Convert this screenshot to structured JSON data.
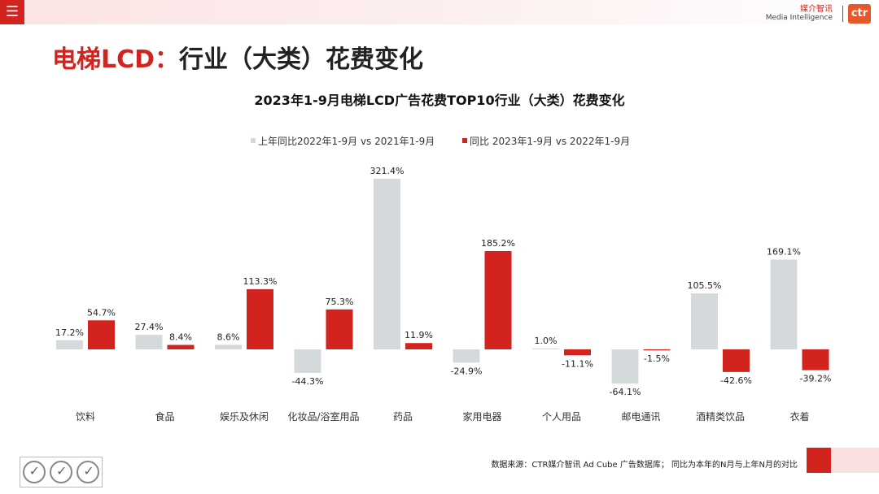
{
  "header": {
    "menu_icon": "☰",
    "brand_cn": "媒介智讯",
    "brand_en": "Media Intelligence",
    "logo_text": "ctr"
  },
  "page_title": {
    "accent": "电梯LCD：",
    "rest": "行业（大类）花费变化"
  },
  "footer": {
    "source": "数据来源：CTR媒介智讯 Ad Cube 广告数据库；  同比为本年的N月与上年N月的对比"
  },
  "colors": {
    "series_prev": "#d4d9dc",
    "series_curr": "#d2231f",
    "accent": "#d2231f"
  },
  "chart_data": {
    "type": "bar",
    "title": "2023年1-9月电梯LCD广告花费TOP10行业（大类）花费变化",
    "categories": [
      "饮料",
      "食品",
      "娱乐及休闲",
      "化妆品/浴室用品",
      "药品",
      "家用电器",
      "个人用品",
      "邮电通讯",
      "酒精类饮品",
      "衣着"
    ],
    "series": [
      {
        "name": "上年同比2022年1-9月 vs 2021年1-9月",
        "values": [
          17.2,
          27.4,
          8.6,
          -44.3,
          321.4,
          -24.9,
          1.0,
          -64.1,
          105.5,
          169.1
        ],
        "labels": [
          "17.2%",
          "27.4%",
          "8.6%",
          "-44.3%",
          "321.4%",
          "-24.9%",
          "1.0%",
          "-64.1%",
          "105.5%",
          "169.1%"
        ]
      },
      {
        "name": "同比 2023年1-9月  vs 2022年1-9月",
        "values": [
          54.7,
          8.4,
          113.3,
          75.3,
          11.9,
          185.2,
          -11.1,
          -1.5,
          -42.6,
          -39.2
        ],
        "labels": [
          "54.7%",
          "8.4%",
          "113.3%",
          "75.3%",
          "11.9%",
          "185.2%",
          "-11.1%",
          "-1.5%",
          "-42.6%",
          "-39.2%"
        ]
      }
    ],
    "xlabel": "",
    "ylabel": "",
    "legend": "top-center",
    "grid": false,
    "value_format": "percent"
  }
}
